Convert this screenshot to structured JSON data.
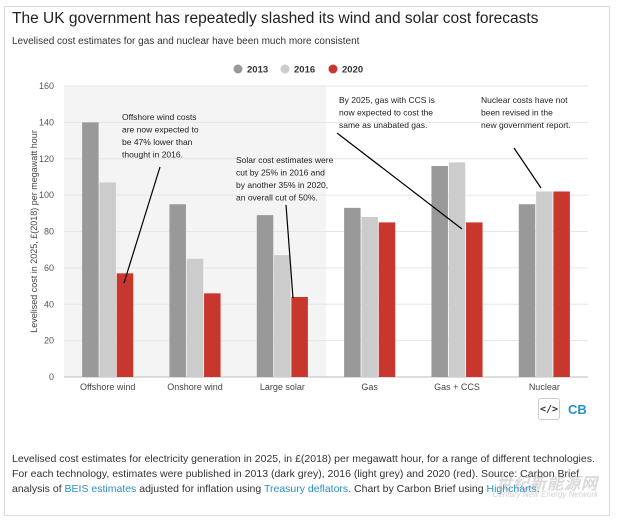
{
  "title": "The UK government has repeatedly slashed its wind and solar cost forecasts",
  "subtitle": "Levelised cost estimates for gas and nuclear have been much more consistent",
  "chart_data": {
    "type": "bar",
    "categories": [
      "Offshore wind",
      "Onshore wind",
      "Large solar",
      "Gas",
      "Gas + CCS",
      "Nuclear"
    ],
    "series": [
      {
        "name": "2013",
        "color": "#999999",
        "values": [
          140,
          95,
          89,
          93,
          116,
          95
        ]
      },
      {
        "name": "2016",
        "color": "#cccccc",
        "values": [
          107,
          65,
          67,
          88,
          118,
          102
        ]
      },
      {
        "name": "2020",
        "color": "#c8372d",
        "values": [
          57,
          46,
          44,
          85,
          85,
          102
        ]
      }
    ],
    "ylabel": "Levelised cost in 2025, £(2018) per megawatt hour",
    "ylim": [
      0,
      160
    ],
    "yticks": [
      "0",
      "20",
      "40",
      "60",
      "80",
      "100",
      "120",
      "140",
      "160"
    ],
    "grid": true,
    "legend": "top-center",
    "annotations": [
      {
        "lines": [
          "Offshore wind costs",
          "are now expected to",
          "be 47% lower than",
          "thought in 2016."
        ]
      },
      {
        "lines": [
          "Solar cost estimates were",
          "cut by 25% in 2016 and",
          "by another 35% in 2020,",
          "an overall cut of 50%."
        ]
      },
      {
        "lines": [
          "By 2025, gas with CCS is",
          "now expected to cost the",
          "same as unabated gas."
        ]
      },
      {
        "lines": [
          "Nuclear costs have not",
          "been revised in the",
          "new government report."
        ]
      }
    ]
  },
  "icons": {
    "embed": "code-icon",
    "logo": "CB"
  },
  "caption": {
    "part1": "Levelised cost estimates for electricity generation in 2025, in £(2018) per megawatt hour, for a range of different technologies. For each technology, estimates were published in 2013 (dark grey), 2016 (light grey) and 2020 (red). Source: Carbon Brief analysis of ",
    "link1": "BEIS estimates",
    "part2": " adjusted for inflation using ",
    "link2": "Treasury deflators",
    "part3": ". Chart by Carbon Brief using ",
    "link3": "Highcharts",
    "part4": "."
  },
  "watermark": {
    "main": "世纪新能源网",
    "sub": "Century New Energy Network"
  }
}
